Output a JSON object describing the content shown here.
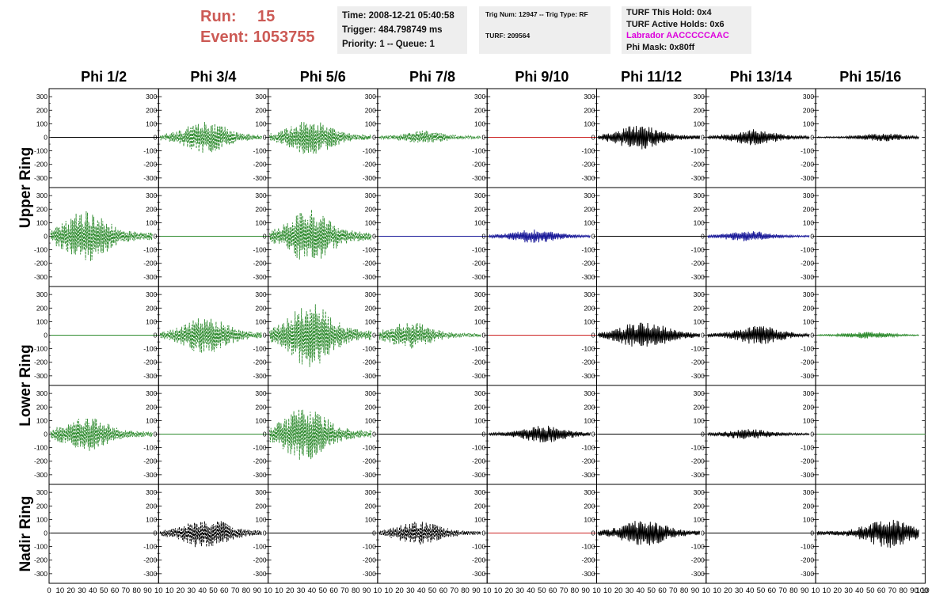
{
  "header": {
    "run_label": "Run:",
    "run_value": "15",
    "event_label": "Event:",
    "event_value": "1053755",
    "info_box_1": [
      "Time: 2008-12-21 05:40:58",
      "Trigger: 484.798749 ms",
      "Priority: 1 -- Queue: 1"
    ],
    "info_box_2": {
      "line1": "Trig Num: 12947 -- Trig Type: RF",
      "line2": "TURF: 209564"
    },
    "info_box_3": {
      "this_hold": "TURF This Hold: 0x4",
      "active_holds": "TURF Active Holds: 0x6",
      "labrador": "Labrador AACCCCCAAC",
      "phi_mask": "Phi Mask: 0x80ff"
    }
  },
  "colors": {
    "header_red": "#cc5a55",
    "box_bg": "#eeeeee",
    "magenta": "#dd00dd",
    "black": "#000000",
    "green": "#2e8b2e",
    "blue": "#1a1a99",
    "red": "#cc2222"
  },
  "chart_data": {
    "type": "line",
    "description_rows": [
      "Upper Ring",
      "Upper Ring",
      "Lower Ring",
      "Lower Ring",
      "Nadir Ring"
    ],
    "column_titles": [
      "Phi 1/2",
      "Phi 3/4",
      "Phi 5/6",
      "Phi 7/8",
      "Phi 9/10",
      "Phi 11/12",
      "Phi 13/14",
      "Phi 15/16"
    ],
    "row_titles": [
      "Upper Ring",
      "Lower Ring",
      "Nadir Ring"
    ],
    "y_ticks": [
      300,
      200,
      100,
      0,
      -100,
      -200,
      -300
    ],
    "ylim": [
      -330,
      330
    ],
    "x_tick_label_strip": "0 10 20 30 40 50 60 70 80 90 10",
    "x_tick_last": "100",
    "xlim": [
      0,
      100
    ],
    "panels": [
      [
        {
          "color": "black",
          "style": "solid",
          "amp": 0,
          "peak": 50
        },
        {
          "color": "green",
          "style": "dashed",
          "amp": 120,
          "peak": 45
        },
        {
          "color": "green",
          "style": "dashed",
          "amp": 130,
          "peak": 40
        },
        {
          "color": "green",
          "style": "dashed",
          "amp": 50,
          "peak": 45
        },
        {
          "color": "red",
          "style": "solid",
          "amp": 0,
          "peak": 50
        },
        {
          "color": "black",
          "style": "solid",
          "amp": 90,
          "peak": 40
        },
        {
          "color": "black",
          "style": "solid",
          "amp": 60,
          "peak": 45
        },
        {
          "color": "black",
          "style": "solid",
          "amp": 30,
          "peak": 65
        }
      ],
      [
        {
          "color": "green",
          "style": "dashed",
          "amp": 190,
          "peak": 35
        },
        {
          "color": "green",
          "style": "solid",
          "amp": 0,
          "peak": 50
        },
        {
          "color": "green",
          "style": "dashed",
          "amp": 200,
          "peak": 40
        },
        {
          "color": "blue",
          "style": "solid",
          "amp": 0,
          "peak": 50
        },
        {
          "color": "blue",
          "style": "solid",
          "amp": 50,
          "peak": 45
        },
        {
          "color": "black",
          "style": "solid",
          "amp": 0,
          "peak": 50
        },
        {
          "color": "blue",
          "style": "solid",
          "amp": 40,
          "peak": 40
        },
        {
          "color": "black",
          "style": "solid",
          "amp": 0,
          "peak": 50
        }
      ],
      [
        {
          "color": "green",
          "style": "solid",
          "amp": 0,
          "peak": 50
        },
        {
          "color": "green",
          "style": "dashed",
          "amp": 140,
          "peak": 45
        },
        {
          "color": "green",
          "style": "dashed",
          "amp": 240,
          "peak": 40
        },
        {
          "color": "green",
          "style": "dashed",
          "amp": 100,
          "peak": 30
        },
        {
          "color": "red",
          "style": "solid",
          "amp": 0,
          "peak": 50
        },
        {
          "color": "black",
          "style": "solid",
          "amp": 110,
          "peak": 45
        },
        {
          "color": "black",
          "style": "solid",
          "amp": 70,
          "peak": 50
        },
        {
          "color": "green",
          "style": "solid",
          "amp": 25,
          "peak": 50
        }
      ],
      [
        {
          "color": "green",
          "style": "dashed",
          "amp": 130,
          "peak": 35
        },
        {
          "color": "green",
          "style": "solid",
          "amp": 0,
          "peak": 50
        },
        {
          "color": "green",
          "style": "dashed",
          "amp": 200,
          "peak": 35
        },
        {
          "color": "black",
          "style": "solid",
          "amp": 0,
          "peak": 50
        },
        {
          "color": "black",
          "style": "solid",
          "amp": 65,
          "peak": 55
        },
        {
          "color": "black",
          "style": "solid",
          "amp": 0,
          "peak": 50
        },
        {
          "color": "black",
          "style": "solid",
          "amp": 40,
          "peak": 40
        },
        {
          "color": "green",
          "style": "solid",
          "amp": 0,
          "peak": 50
        }
      ],
      [
        {
          "color": "black",
          "style": "solid",
          "amp": 0,
          "peak": 50
        },
        {
          "color": "black",
          "style": "dashed",
          "amp": 120,
          "peak": 45
        },
        {
          "color": "black",
          "style": "solid",
          "amp": 0,
          "peak": 50
        },
        {
          "color": "black",
          "style": "dashed",
          "amp": 90,
          "peak": 40
        },
        {
          "color": "red",
          "style": "solid",
          "amp": 0,
          "peak": 50
        },
        {
          "color": "black",
          "style": "solid",
          "amp": 100,
          "peak": 45
        },
        {
          "color": "black",
          "style": "solid",
          "amp": 0,
          "peak": 50
        },
        {
          "color": "black",
          "style": "solid",
          "amp": 110,
          "peak": 70
        }
      ]
    ]
  }
}
